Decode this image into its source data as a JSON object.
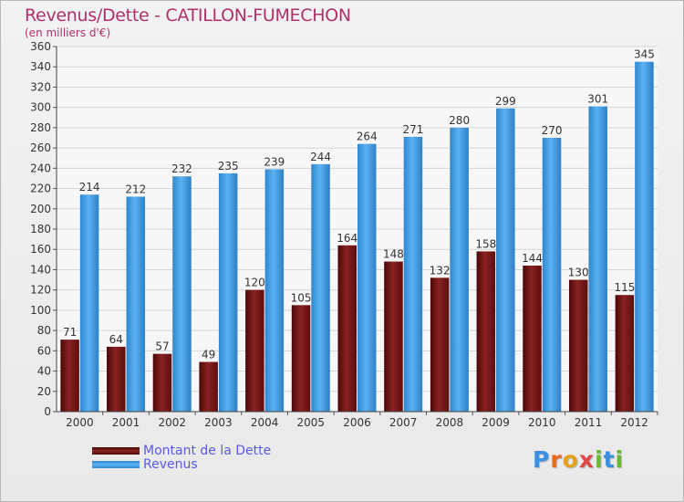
{
  "title": "Revenus/Dette - CATILLON-FUMECHON",
  "subtitle": "(en milliers d'€)",
  "legend": {
    "debt_label": "Montant de la Dette",
    "revenue_label": "Revenus"
  },
  "logo_text": "Proxiti",
  "colors": {
    "debt": "#7a1818",
    "revenue": "#3f9fe8",
    "title": "#b0306a",
    "legend_text": "#5a5ae6"
  },
  "chart_data": {
    "type": "bar",
    "title": "Revenus/Dette - CATILLON-FUMECHON",
    "subtitle": "(en milliers d'€)",
    "xlabel": "",
    "ylabel": "",
    "categories": [
      "2000",
      "2001",
      "2002",
      "2003",
      "2004",
      "2005",
      "2006",
      "2007",
      "2008",
      "2009",
      "2010",
      "2011",
      "2012"
    ],
    "series": [
      {
        "name": "Montant de la Dette",
        "values": [
          71,
          64,
          57,
          49,
          120,
          105,
          164,
          148,
          132,
          158,
          144,
          130,
          115
        ]
      },
      {
        "name": "Revenus",
        "values": [
          214,
          212,
          232,
          235,
          239,
          244,
          264,
          271,
          280,
          299,
          270,
          301,
          345
        ]
      }
    ],
    "ylim": [
      0,
      360
    ],
    "yticks": [
      0,
      20,
      40,
      60,
      80,
      100,
      120,
      140,
      160,
      180,
      200,
      220,
      240,
      260,
      280,
      300,
      320,
      340,
      360
    ],
    "grid": true,
    "legend_position": "bottom-left"
  }
}
